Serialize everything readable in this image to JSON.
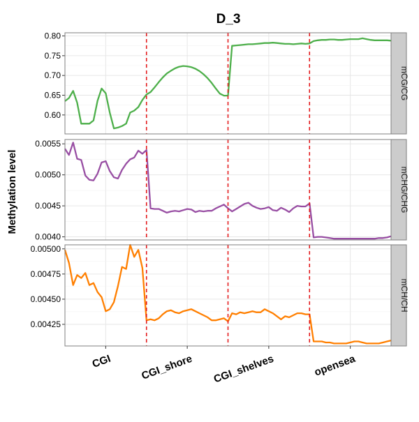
{
  "chart_data": {
    "type": "line",
    "title": "D_3",
    "ylabel": "Methylation level",
    "xlabel": "",
    "categories": [
      "CGI",
      "CGI_shore",
      "CGI_shelves",
      "opensea"
    ],
    "region_boundaries": [
      1,
      2,
      3
    ],
    "x_range": [
      0,
      4
    ],
    "grid": true,
    "boundary_line_color": "#e41a1c",
    "facets": [
      {
        "label": "mCG/CG",
        "color": "#4daf4a",
        "ylim": [
          0.552,
          0.808
        ],
        "yticks": [
          0.6,
          0.65,
          0.7,
          0.75,
          0.8
        ],
        "ytick_labels": [
          "0.60",
          "0.65",
          "0.70",
          "0.75",
          "0.80"
        ],
        "x": [
          0.0,
          0.05,
          0.1,
          0.15,
          0.2,
          0.25,
          0.3,
          0.35,
          0.4,
          0.45,
          0.5,
          0.55,
          0.6,
          0.65,
          0.7,
          0.75,
          0.8,
          0.85,
          0.9,
          0.95,
          1.0,
          1.05,
          1.1,
          1.15,
          1.2,
          1.25,
          1.3,
          1.35,
          1.4,
          1.45,
          1.5,
          1.55,
          1.6,
          1.65,
          1.7,
          1.75,
          1.8,
          1.85,
          1.9,
          1.95,
          2.0,
          2.05,
          2.1,
          2.15,
          2.2,
          2.25,
          2.3,
          2.35,
          2.4,
          2.45,
          2.5,
          2.55,
          2.6,
          2.65,
          2.7,
          2.75,
          2.8,
          2.85,
          2.9,
          2.95,
          3.0,
          3.05,
          3.1,
          3.15,
          3.2,
          3.25,
          3.3,
          3.35,
          3.4,
          3.45,
          3.5,
          3.55,
          3.6,
          3.65,
          3.7,
          3.75,
          3.8,
          3.85,
          3.9,
          3.95,
          4.0
        ],
        "values": [
          0.635,
          0.643,
          0.661,
          0.631,
          0.578,
          0.578,
          0.578,
          0.586,
          0.636,
          0.667,
          0.655,
          0.606,
          0.566,
          0.568,
          0.572,
          0.578,
          0.606,
          0.611,
          0.62,
          0.638,
          0.652,
          0.658,
          0.67,
          0.683,
          0.695,
          0.705,
          0.712,
          0.718,
          0.722,
          0.724,
          0.723,
          0.721,
          0.717,
          0.711,
          0.703,
          0.693,
          0.681,
          0.667,
          0.654,
          0.649,
          0.649,
          0.775,
          0.776,
          0.777,
          0.778,
          0.779,
          0.779,
          0.78,
          0.781,
          0.782,
          0.782,
          0.783,
          0.782,
          0.781,
          0.78,
          0.78,
          0.779,
          0.78,
          0.781,
          0.78,
          0.781,
          0.787,
          0.789,
          0.79,
          0.79,
          0.791,
          0.791,
          0.79,
          0.79,
          0.791,
          0.792,
          0.792,
          0.792,
          0.794,
          0.792,
          0.79,
          0.789,
          0.789,
          0.789,
          0.789,
          0.788
        ]
      },
      {
        "label": "mCHG/CHG",
        "color": "#984ea3",
        "ylim": [
          0.00395,
          0.00557
        ],
        "yticks": [
          0.004,
          0.0045,
          0.005,
          0.0055
        ],
        "ytick_labels": [
          "0.0040",
          "0.0045",
          "0.0050",
          "0.0055"
        ],
        "x": [
          0.0,
          0.05,
          0.1,
          0.15,
          0.2,
          0.25,
          0.3,
          0.35,
          0.4,
          0.45,
          0.5,
          0.55,
          0.6,
          0.65,
          0.7,
          0.75,
          0.8,
          0.85,
          0.9,
          0.95,
          1.0,
          1.05,
          1.1,
          1.15,
          1.2,
          1.25,
          1.3,
          1.35,
          1.4,
          1.45,
          1.5,
          1.55,
          1.6,
          1.65,
          1.7,
          1.75,
          1.8,
          1.85,
          1.9,
          1.95,
          2.0,
          2.05,
          2.1,
          2.15,
          2.2,
          2.25,
          2.3,
          2.35,
          2.4,
          2.45,
          2.5,
          2.55,
          2.6,
          2.65,
          2.7,
          2.75,
          2.8,
          2.85,
          2.9,
          2.95,
          3.0,
          3.05,
          3.1,
          3.15,
          3.2,
          3.25,
          3.3,
          3.35,
          3.4,
          3.45,
          3.5,
          3.55,
          3.6,
          3.65,
          3.7,
          3.75,
          3.8,
          3.85,
          3.9,
          3.95,
          4.0
        ],
        "values": [
          0.00542,
          0.00532,
          0.00552,
          0.00526,
          0.00524,
          0.00499,
          0.00492,
          0.00491,
          0.00502,
          0.0052,
          0.00522,
          0.00506,
          0.00496,
          0.00494,
          0.00508,
          0.00518,
          0.00525,
          0.00528,
          0.00539,
          0.00534,
          0.0054,
          0.00446,
          0.00445,
          0.00445,
          0.00442,
          0.00439,
          0.00441,
          0.00442,
          0.00441,
          0.00443,
          0.00445,
          0.00444,
          0.0044,
          0.00442,
          0.00441,
          0.00442,
          0.00442,
          0.00446,
          0.00449,
          0.00452,
          0.00446,
          0.00441,
          0.00445,
          0.00449,
          0.00453,
          0.00455,
          0.0045,
          0.00447,
          0.00445,
          0.00446,
          0.00448,
          0.00443,
          0.00442,
          0.00447,
          0.00444,
          0.0044,
          0.00446,
          0.0045,
          0.00449,
          0.00449,
          0.00454,
          0.00399,
          0.004,
          0.004,
          0.00399,
          0.00398,
          0.00397,
          0.00397,
          0.00397,
          0.00397,
          0.00397,
          0.00397,
          0.00397,
          0.00397,
          0.00397,
          0.00397,
          0.00397,
          0.00398,
          0.00398,
          0.00399,
          0.00401
        ]
      },
      {
        "label": "mCH/CH",
        "color": "#ff7f00",
        "ylim": [
          0.004035,
          0.00504
        ],
        "yticks": [
          0.00425,
          0.0045,
          0.00475,
          0.005
        ],
        "ytick_labels": [
          "0.00425",
          "0.00450",
          "0.00475",
          "0.00500"
        ],
        "x": [
          0.0,
          0.05,
          0.1,
          0.15,
          0.2,
          0.25,
          0.3,
          0.35,
          0.4,
          0.45,
          0.5,
          0.55,
          0.6,
          0.65,
          0.7,
          0.75,
          0.8,
          0.85,
          0.9,
          0.95,
          1.0,
          1.05,
          1.1,
          1.15,
          1.2,
          1.25,
          1.3,
          1.35,
          1.4,
          1.45,
          1.5,
          1.55,
          1.6,
          1.65,
          1.7,
          1.75,
          1.8,
          1.85,
          1.9,
          1.95,
          2.0,
          2.05,
          2.1,
          2.15,
          2.2,
          2.25,
          2.3,
          2.35,
          2.4,
          2.45,
          2.5,
          2.55,
          2.6,
          2.65,
          2.7,
          2.75,
          2.8,
          2.85,
          2.9,
          2.95,
          3.0,
          3.05,
          3.1,
          3.15,
          3.2,
          3.25,
          3.3,
          3.35,
          3.4,
          3.45,
          3.5,
          3.55,
          3.6,
          3.65,
          3.7,
          3.75,
          3.8,
          3.85,
          3.9,
          3.95,
          4.0
        ],
        "values": [
          0.00499,
          0.00486,
          0.00464,
          0.00474,
          0.00471,
          0.00476,
          0.00464,
          0.00466,
          0.00457,
          0.00452,
          0.00438,
          0.0044,
          0.00447,
          0.00463,
          0.00482,
          0.0048,
          0.00504,
          0.00492,
          0.00499,
          0.00481,
          0.00429,
          0.0043,
          0.00429,
          0.00431,
          0.00435,
          0.00438,
          0.00439,
          0.00437,
          0.00436,
          0.00438,
          0.00439,
          0.0044,
          0.00438,
          0.00436,
          0.00434,
          0.00432,
          0.00429,
          0.00429,
          0.0043,
          0.00431,
          0.00428,
          0.00436,
          0.00435,
          0.00437,
          0.00436,
          0.00437,
          0.00438,
          0.00437,
          0.00437,
          0.0044,
          0.00438,
          0.00436,
          0.00433,
          0.0043,
          0.00433,
          0.00432,
          0.00434,
          0.00436,
          0.00436,
          0.00435,
          0.00435,
          0.00408,
          0.00408,
          0.00408,
          0.00407,
          0.00407,
          0.00406,
          0.00406,
          0.00406,
          0.00406,
          0.00407,
          0.00408,
          0.00408,
          0.00407,
          0.00406,
          0.00406,
          0.00406,
          0.00406,
          0.00407,
          0.00408,
          0.00409
        ]
      }
    ]
  }
}
